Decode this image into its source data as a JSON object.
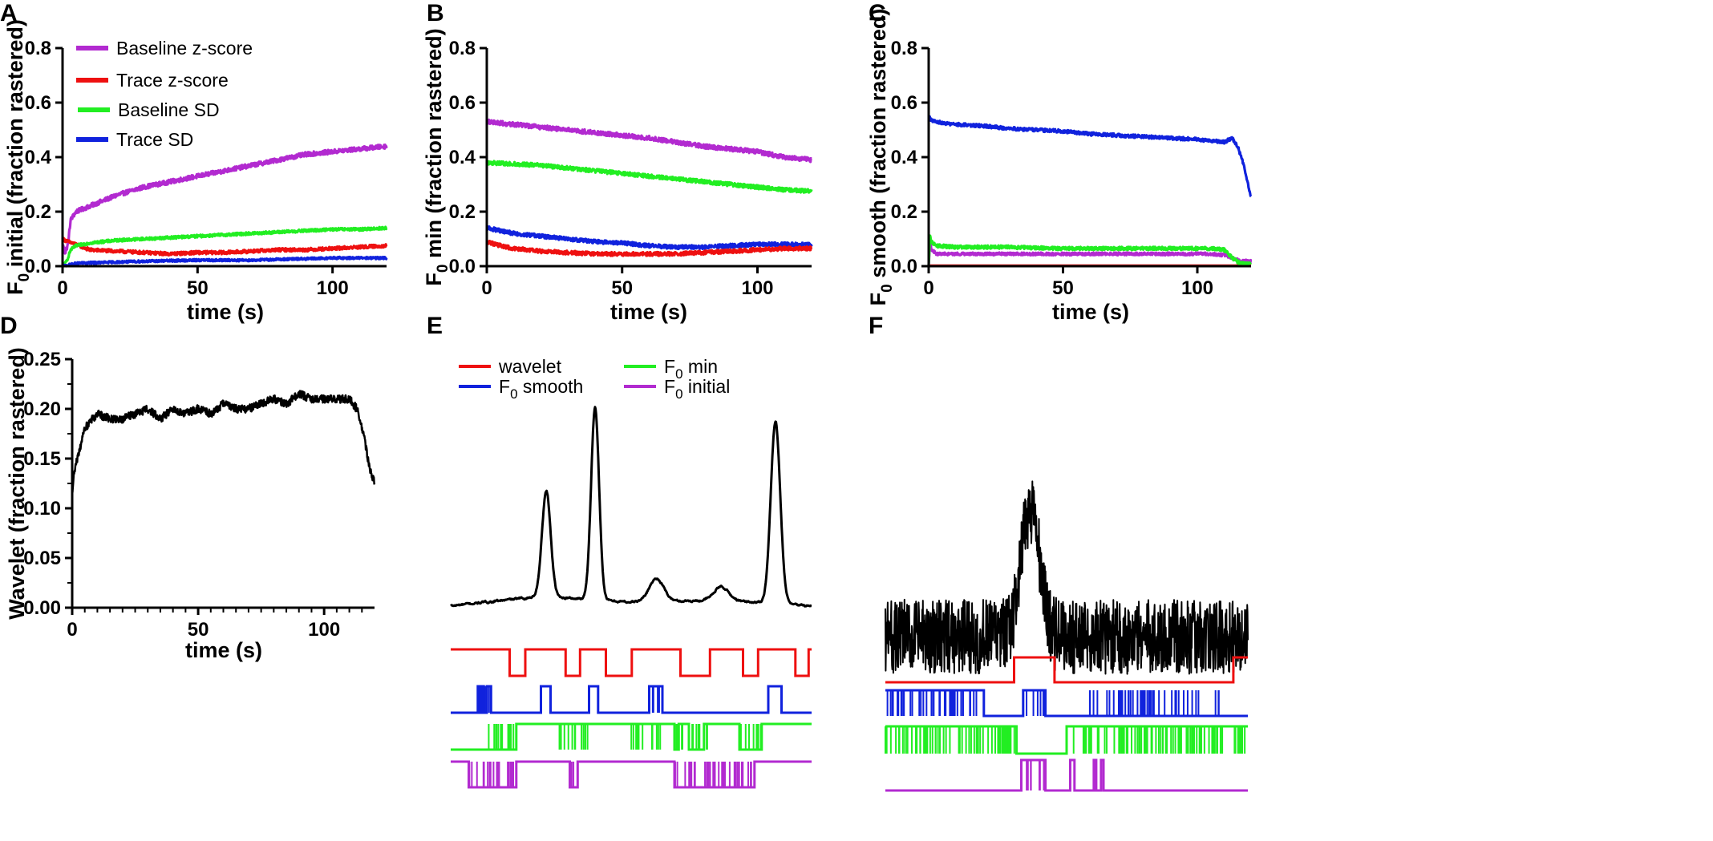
{
  "figure": {
    "colors": {
      "purple": "#b22ad0",
      "red": "#ee1010",
      "green": "#22ee22",
      "blue": "#1022dd",
      "black": "#000000"
    }
  },
  "chart_data": [
    {
      "panel": "A",
      "type": "line",
      "xlabel": "time (s)",
      "ylabel_prefix": "F",
      "ylabel_sub": "0",
      "ylabel_suffix": " initial (fraction rastered)",
      "xlim": [
        0,
        120
      ],
      "ylim": [
        0,
        0.8
      ],
      "xticks": [
        0,
        50,
        100
      ],
      "yticks": [
        0.0,
        0.2,
        0.4,
        0.6,
        0.8
      ],
      "ytick_labels": [
        "0.0",
        "0.2",
        "0.4",
        "0.6",
        "0.8"
      ],
      "legend": [
        {
          "name": "Baseline z-score",
          "color": "#b22ad0"
        },
        {
          "name": "Trace z-score",
          "color": "#ee1010"
        },
        {
          "name": "Baseline SD",
          "color": "#22ee22"
        },
        {
          "name": "Trace SD",
          "color": "#1022dd"
        }
      ],
      "series": [
        {
          "name": "Baseline z-score",
          "color": "#b22ad0",
          "noise": 0.008,
          "x": [
            0,
            1,
            2,
            3,
            5,
            10,
            20,
            30,
            40,
            50,
            60,
            70,
            80,
            90,
            100,
            110,
            120
          ],
          "y": [
            0.08,
            0.05,
            0.08,
            0.17,
            0.2,
            0.22,
            0.26,
            0.29,
            0.31,
            0.33,
            0.35,
            0.37,
            0.39,
            0.41,
            0.42,
            0.43,
            0.44
          ]
        },
        {
          "name": "Trace z-score",
          "color": "#ee1010",
          "noise": 0.006,
          "x": [
            0,
            2,
            5,
            10,
            20,
            30,
            40,
            50,
            60,
            70,
            80,
            90,
            100,
            110,
            120
          ],
          "y": [
            0.1,
            0.09,
            0.08,
            0.06,
            0.055,
            0.05,
            0.045,
            0.05,
            0.05,
            0.055,
            0.06,
            0.06,
            0.065,
            0.07,
            0.075
          ]
        },
        {
          "name": "Baseline SD",
          "color": "#22ee22",
          "noise": 0.005,
          "x": [
            0,
            1,
            2,
            3,
            5,
            10,
            20,
            30,
            40,
            50,
            60,
            70,
            80,
            90,
            100,
            110,
            120
          ],
          "y": [
            0.0,
            0.01,
            0.03,
            0.06,
            0.075,
            0.085,
            0.095,
            0.1,
            0.105,
            0.11,
            0.115,
            0.12,
            0.125,
            0.13,
            0.135,
            0.135,
            0.14
          ]
        },
        {
          "name": "Trace SD",
          "color": "#1022dd",
          "noise": 0.004,
          "x": [
            0,
            5,
            10,
            20,
            30,
            40,
            50,
            60,
            70,
            80,
            90,
            100,
            110,
            120
          ],
          "y": [
            0.0,
            0.01,
            0.012,
            0.015,
            0.018,
            0.02,
            0.022,
            0.022,
            0.022,
            0.025,
            0.027,
            0.03,
            0.03,
            0.03
          ]
        }
      ]
    },
    {
      "panel": "B",
      "type": "line",
      "xlabel": "time (s)",
      "ylabel_prefix": "F",
      "ylabel_sub": "0",
      "ylabel_suffix": " min (fraction rastered)",
      "xlim": [
        0,
        120
      ],
      "ylim": [
        0,
        0.8
      ],
      "xticks": [
        0,
        50,
        100
      ],
      "yticks": [
        0.0,
        0.2,
        0.4,
        0.6,
        0.8
      ],
      "ytick_labels": [
        "0.0",
        "0.2",
        "0.4",
        "0.6",
        "0.8"
      ],
      "series": [
        {
          "name": "Baseline z-score",
          "color": "#b22ad0",
          "noise": 0.008,
          "x": [
            0,
            10,
            20,
            30,
            40,
            50,
            60,
            70,
            80,
            90,
            100,
            110,
            120
          ],
          "y": [
            0.53,
            0.52,
            0.51,
            0.5,
            0.49,
            0.48,
            0.47,
            0.455,
            0.44,
            0.43,
            0.42,
            0.4,
            0.39
          ]
        },
        {
          "name": "Baseline SD",
          "color": "#22ee22",
          "noise": 0.007,
          "x": [
            0,
            10,
            20,
            30,
            40,
            50,
            60,
            70,
            80,
            90,
            100,
            110,
            120
          ],
          "y": [
            0.38,
            0.375,
            0.37,
            0.36,
            0.35,
            0.34,
            0.33,
            0.32,
            0.31,
            0.3,
            0.29,
            0.28,
            0.275
          ]
        },
        {
          "name": "Trace SD",
          "color": "#1022dd",
          "noise": 0.007,
          "x": [
            0,
            5,
            10,
            20,
            30,
            40,
            50,
            60,
            70,
            80,
            90,
            100,
            110,
            120
          ],
          "y": [
            0.14,
            0.13,
            0.12,
            0.11,
            0.1,
            0.09,
            0.085,
            0.075,
            0.07,
            0.07,
            0.075,
            0.08,
            0.08,
            0.078
          ]
        },
        {
          "name": "Trace z-score",
          "color": "#ee1010",
          "noise": 0.007,
          "x": [
            0,
            5,
            10,
            20,
            30,
            40,
            50,
            60,
            70,
            80,
            90,
            100,
            110,
            120
          ],
          "y": [
            0.09,
            0.075,
            0.065,
            0.055,
            0.05,
            0.045,
            0.045,
            0.045,
            0.045,
            0.05,
            0.055,
            0.06,
            0.065,
            0.065
          ]
        }
      ]
    },
    {
      "panel": "C",
      "type": "line",
      "xlabel": "time (s)",
      "ylabel_prefix": "F",
      "ylabel_sub": "0",
      "ylabel_suffix": " smooth (fraction rastered)",
      "xlim": [
        0,
        120
      ],
      "ylim": [
        0,
        0.8
      ],
      "xticks": [
        0,
        50,
        100
      ],
      "yticks": [
        0.0,
        0.2,
        0.4,
        0.6,
        0.8
      ],
      "ytick_labels": [
        "0.0",
        "0.2",
        "0.4",
        "0.6",
        "0.8"
      ],
      "series": [
        {
          "name": "Trace z-score",
          "color": "#ee1010",
          "noise": 0.0,
          "x": [
            0,
            120
          ],
          "y": [
            0.002,
            0.002
          ]
        },
        {
          "name": "Baseline z-score",
          "color": "#b22ad0",
          "noise": 0.005,
          "x": [
            0,
            0.5,
            1,
            3,
            10,
            30,
            50,
            70,
            90,
            105,
            110,
            113,
            116,
            120
          ],
          "y": [
            0.0,
            0.1,
            0.06,
            0.045,
            0.045,
            0.045,
            0.045,
            0.045,
            0.045,
            0.045,
            0.04,
            0.03,
            0.02,
            0.018
          ]
        },
        {
          "name": "Baseline SD",
          "color": "#22ee22",
          "noise": 0.006,
          "x": [
            0,
            0.5,
            1,
            3,
            10,
            30,
            50,
            70,
            90,
            105,
            110,
            113,
            116,
            120
          ],
          "y": [
            0.0,
            0.11,
            0.09,
            0.075,
            0.07,
            0.07,
            0.065,
            0.065,
            0.065,
            0.065,
            0.06,
            0.03,
            0.01,
            0.008
          ]
        },
        {
          "name": "Trace SD",
          "color": "#1022dd",
          "noise": 0.006,
          "x": [
            0,
            1,
            5,
            10,
            20,
            30,
            40,
            50,
            60,
            70,
            80,
            90,
            100,
            105,
            110,
            113,
            115,
            117,
            120
          ],
          "y": [
            0.55,
            0.535,
            0.525,
            0.52,
            0.515,
            0.505,
            0.5,
            0.495,
            0.485,
            0.48,
            0.475,
            0.47,
            0.465,
            0.46,
            0.455,
            0.47,
            0.44,
            0.38,
            0.25
          ]
        }
      ]
    },
    {
      "panel": "D",
      "type": "line",
      "xlabel": "time (s)",
      "ylabel_prefix": "Wavelet (fraction rastered)",
      "ylabel_sub": "",
      "ylabel_suffix": "",
      "xlim": [
        0,
        120
      ],
      "ylim": [
        0,
        0.25
      ],
      "xticks": [
        0,
        50,
        100
      ],
      "yticks": [
        0.0,
        0.05,
        0.1,
        0.15,
        0.2,
        0.25
      ],
      "ytick_labels": [
        "0.00",
        "0.05",
        "0.10",
        "0.15",
        "0.20",
        "0.25"
      ],
      "series": [
        {
          "name": "Wavelet",
          "color": "#000000",
          "noise": 0.004,
          "x": [
            0,
            1,
            3,
            5,
            8,
            10,
            15,
            20,
            25,
            30,
            35,
            40,
            45,
            50,
            55,
            60,
            65,
            70,
            75,
            80,
            85,
            90,
            95,
            100,
            105,
            110,
            113,
            116,
            118,
            120
          ],
          "y": [
            0.115,
            0.14,
            0.16,
            0.18,
            0.19,
            0.195,
            0.19,
            0.19,
            0.195,
            0.2,
            0.19,
            0.2,
            0.195,
            0.2,
            0.195,
            0.205,
            0.2,
            0.2,
            0.205,
            0.21,
            0.205,
            0.215,
            0.21,
            0.21,
            0.21,
            0.21,
            0.2,
            0.17,
            0.14,
            0.125
          ]
        }
      ]
    },
    {
      "panel": "E",
      "type": "line",
      "legend": [
        {
          "prefix": "wavelet",
          "sub": "",
          "suffix": "",
          "color": "#ee1010"
        },
        {
          "prefix": "F",
          "sub": "0",
          "suffix": " smooth",
          "color": "#1022dd"
        },
        {
          "prefix": "F",
          "sub": "0",
          "suffix": " min",
          "color": "#22ee22"
        },
        {
          "prefix": "F",
          "sub": "0",
          "suffix": " initial",
          "color": "#b22ad0"
        }
      ],
      "trace": {
        "color": "#000000",
        "noise": 0.012,
        "baseline": 0.08,
        "drift": [
          0.0,
          0.05,
          0.02,
          0.03,
          0.0
        ],
        "peaks": [
          {
            "center": 0.265,
            "height": 0.55,
            "width": 0.012
          },
          {
            "center": 0.4,
            "height": 1.0,
            "width": 0.011
          },
          {
            "center": 0.57,
            "height": 0.12,
            "width": 0.02
          },
          {
            "center": 0.75,
            "height": 0.07,
            "width": 0.02
          },
          {
            "center": 0.9,
            "height": 0.95,
            "width": 0.013
          }
        ]
      },
      "rasters": [
        {
          "name": "wavelet",
          "color": "#ee1010",
          "low": [
            [
              0.162,
              0.205
            ],
            [
              0.318,
              0.358
            ],
            [
              0.43,
              0.5
            ],
            [
              0.636,
              0.717
            ],
            [
              0.81,
              0.85
            ],
            [
              0.955,
              0.99
            ]
          ]
        },
        {
          "name": "F0 smooth",
          "color": "#1022dd",
          "high": [
            [
              0.075,
              0.08
            ],
            [
              0.085,
              0.09
            ],
            [
              0.1,
              0.11
            ],
            [
              0.25,
              0.275
            ],
            [
              0.382,
              0.407
            ],
            [
              0.55,
              0.585
            ],
            [
              0.88,
              0.915
            ]
          ],
          "dense": [
            [
              0.07,
              0.125,
              0.6
            ],
            [
              0.545,
              0.59,
              0.7
            ]
          ]
        },
        {
          "name": "F0 min",
          "color": "#22ee22",
          "low": [
            [
              0.0,
              0.18
            ],
            [
              0.62,
              0.63
            ],
            [
              0.66,
              0.7
            ],
            [
              0.8,
              0.84
            ],
            [
              0.84,
              0.86
            ]
          ],
          "dense": [
            [
              0.08,
              0.18,
              0.7
            ],
            [
              0.3,
              0.38,
              0.75
            ],
            [
              0.5,
              0.6,
              0.6
            ],
            [
              0.62,
              0.72,
              0.65
            ],
            [
              0.8,
              0.87,
              0.6
            ]
          ]
        },
        {
          "name": "F0 initial",
          "color": "#b22ad0",
          "low": [
            [
              0.05,
              0.18
            ],
            [
              0.33,
              0.35
            ],
            [
              0.62,
              0.84
            ]
          ],
          "dense": [
            [
              0.05,
              0.18,
              0.7
            ],
            [
              0.325,
              0.355,
              0.5
            ],
            [
              0.62,
              0.84,
              0.8
            ]
          ]
        }
      ]
    },
    {
      "panel": "F",
      "type": "line",
      "trace": {
        "color": "#000000",
        "noise": 0.16,
        "baseline": 0.33,
        "drift": [
          0.0,
          0.0,
          0.0,
          0.0,
          0.0
        ],
        "peaks": [
          {
            "center": 0.4,
            "height": 0.55,
            "width": 0.025
          }
        ]
      },
      "rasters": [
        {
          "name": "wavelet",
          "color": "#ee1010",
          "high": [
            [
              0.355,
              0.465
            ],
            [
              0.96,
              1.0
            ]
          ]
        },
        {
          "name": "F0 smooth",
          "color": "#1022dd",
          "high": [
            [
              0.0,
              0.27
            ],
            [
              0.38,
              0.44
            ]
          ],
          "dense": [
            [
              0.0,
              0.27,
              0.75
            ],
            [
              0.38,
              0.44,
              0.5
            ],
            [
              0.56,
              0.92,
              0.6
            ]
          ]
        },
        {
          "name": "F0 min",
          "color": "#22ee22",
          "high": [
            [
              0.0,
              0.36
            ],
            [
              0.5,
              1.0
            ]
          ],
          "dense": [
            [
              0.0,
              0.36,
              0.85
            ],
            [
              0.5,
              1.0,
              0.9
            ]
          ]
        },
        {
          "name": "F0 initial",
          "color": "#b22ad0",
          "high": [
            [
              0.375,
              0.44
            ],
            [
              0.51,
              0.52
            ],
            [
              0.575,
              0.58
            ],
            [
              0.595,
              0.6
            ]
          ],
          "dense": [
            [
              0.375,
              0.44,
              0.5
            ]
          ]
        }
      ]
    }
  ]
}
